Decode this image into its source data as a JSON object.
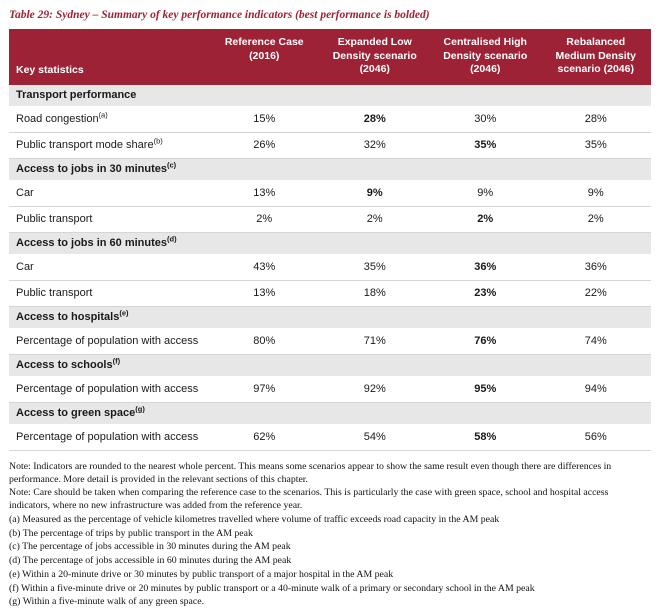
{
  "title": "Table 29: Sydney – Summary of key performance indicators (best performance is bolded)",
  "accent_color": "#9d2235",
  "section_row_color": "#e7e7e7",
  "table": {
    "columns": [
      "Key statistics",
      "Reference Case (2016)",
      "Expanded Low Density scenario (2046)",
      "Centralised High Density scenario (2046)",
      "Rebalanced Medium Density scenario (2046)"
    ],
    "rows": [
      {
        "type": "section",
        "label": "Transport performance",
        "sup": ""
      },
      {
        "type": "data",
        "label": "Road congestion",
        "sup": "(a)",
        "values": [
          "15%",
          "28%",
          "30%",
          "28%"
        ],
        "bold": [
          false,
          true,
          false,
          false
        ]
      },
      {
        "type": "data",
        "label": "Public transport mode share",
        "sup": "(b)",
        "values": [
          "26%",
          "32%",
          "35%",
          "35%"
        ],
        "bold": [
          false,
          false,
          true,
          false
        ]
      },
      {
        "type": "section",
        "label": "Access to jobs in 30 minutes",
        "sup": "(c)"
      },
      {
        "type": "data",
        "label": "Car",
        "sup": "",
        "values": [
          "13%",
          "9%",
          "9%",
          "9%"
        ],
        "bold": [
          false,
          true,
          false,
          false
        ]
      },
      {
        "type": "data",
        "label": "Public transport",
        "sup": "",
        "values": [
          "2%",
          "2%",
          "2%",
          "2%"
        ],
        "bold": [
          false,
          false,
          true,
          false
        ]
      },
      {
        "type": "section",
        "label": "Access to jobs in 60 minutes",
        "sup": "(d)"
      },
      {
        "type": "data",
        "label": "Car",
        "sup": "",
        "values": [
          "43%",
          "35%",
          "36%",
          "36%"
        ],
        "bold": [
          false,
          false,
          true,
          false
        ]
      },
      {
        "type": "data",
        "label": "Public transport",
        "sup": "",
        "values": [
          "13%",
          "18%",
          "23%",
          "22%"
        ],
        "bold": [
          false,
          false,
          true,
          false
        ]
      },
      {
        "type": "section",
        "label": "Access to hospitals",
        "sup": "(e)"
      },
      {
        "type": "data",
        "label": "Percentage of population with access",
        "sup": "",
        "values": [
          "80%",
          "71%",
          "76%",
          "74%"
        ],
        "bold": [
          false,
          false,
          true,
          false
        ]
      },
      {
        "type": "section",
        "label": "Access to schools",
        "sup": "(f)"
      },
      {
        "type": "data",
        "label": "Percentage of population with access",
        "sup": "",
        "values": [
          "97%",
          "92%",
          "95%",
          "94%"
        ],
        "bold": [
          false,
          false,
          true,
          false
        ]
      },
      {
        "type": "section",
        "label": "Access to green space",
        "sup": "(g)"
      },
      {
        "type": "data",
        "label": "Percentage of population with access",
        "sup": "",
        "values": [
          "62%",
          "54%",
          "58%",
          "56%"
        ],
        "bold": [
          false,
          false,
          true,
          false
        ]
      }
    ]
  },
  "notes": [
    "Note: Indicators are rounded to the nearest whole percent. This means some scenarios appear to show the same result even though there are differences in performance. More detail is provided in the relevant sections of this chapter.",
    "Note: Care should be taken when comparing the reference case to the scenarios. This is particularly the case with green space, school and hospital access indicators, where no new infrastructure was added from the reference year.",
    "(a) Measured as the percentage of vehicle kilometres travelled where volume of traffic exceeds road capacity in the AM peak",
    "(b) The percentage of trips by public transport in the AM peak",
    "(c) The percentage of jobs accessible in 30 minutes during the AM peak",
    "(d) The percentage of jobs accessible in 60 minutes during the AM peak",
    "(e) Within a 20-minute drive or 30 minutes by public transport of a major hospital in the AM peak",
    "(f) Within a five-minute drive or 20 minutes by public transport or a 40-minute walk of a primary or secondary school in the AM peak",
    "(g) Within a five-minute walk of any green space."
  ]
}
